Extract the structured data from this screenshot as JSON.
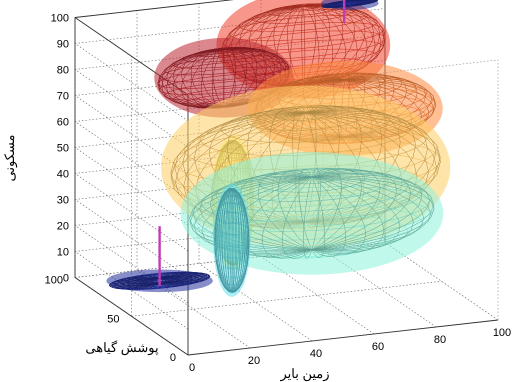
{
  "chart_data": {
    "type": "scatter3d-surface",
    "title": "",
    "xlabel": "زمین بایر",
    "ylabel": "پوشش گیاهی",
    "zlabel": "مسکونی",
    "xlim": [
      0,
      100
    ],
    "ylim": [
      0,
      100
    ],
    "zlim": [
      0,
      100
    ],
    "x_ticks": [
      "0",
      "20",
      "40",
      "60",
      "80",
      "100"
    ],
    "y_ticks": [
      "0",
      "50",
      "100"
    ],
    "z_ticks": [
      "0",
      "10",
      "20",
      "30",
      "40",
      "50",
      "60",
      "70",
      "80",
      "90",
      "100"
    ],
    "grid": true,
    "colormap": "jet",
    "ellipsoids": [
      {
        "center": [
          20,
          80,
          2
        ],
        "radii": [
          16,
          8,
          1
        ],
        "color": "#1f2a8a"
      },
      {
        "center": [
          85,
          90,
          97
        ],
        "radii": [
          9,
          2,
          1
        ],
        "color": "#1f2a8a"
      },
      {
        "center": [
          28,
          38,
          29
        ],
        "radii": [
          5,
          7,
          20
        ],
        "color": "#59c7d2"
      },
      {
        "center": [
          32,
          48,
          40
        ],
        "radii": [
          6,
          8,
          24
        ],
        "color": "#d8e26a"
      },
      {
        "center": [
          60,
          55,
          30
        ],
        "radii": [
          38,
          30,
          14
        ],
        "color": "#7fd8c4"
      },
      {
        "center": [
          58,
          55,
          48
        ],
        "radii": [
          42,
          32,
          21
        ],
        "color": "#e8b75a"
      },
      {
        "center": [
          78,
          75,
          62
        ],
        "radii": [
          28,
          24,
          11
        ],
        "color": "#ee7a36"
      },
      {
        "center": [
          70,
          90,
          83
        ],
        "radii": [
          26,
          14,
          15
        ],
        "color": "#d63a28"
      },
      {
        "center": [
          40,
          78,
          78
        ],
        "radii": [
          21,
          10,
          11
        ],
        "color": "#a8232b"
      }
    ],
    "lines": [
      {
        "name": "",
        "from": [
          20,
          80,
          0
        ],
        "to": [
          20,
          80,
          23
        ],
        "color": "#c23ab8"
      },
      {
        "name": "",
        "from": [
          85,
          95,
          88
        ],
        "to": [
          85,
          95,
          100
        ],
        "color": "#c23ab8"
      }
    ]
  }
}
